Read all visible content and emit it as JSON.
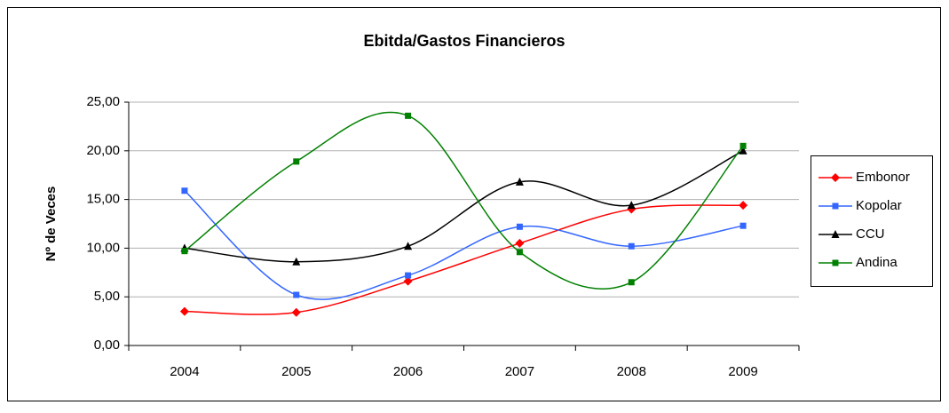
{
  "chart_data": {
    "type": "line",
    "title": "Ebitda/Gastos Financieros",
    "y_label": "Nº de Veces",
    "categories": [
      "2004",
      "2005",
      "2006",
      "2007",
      "2008",
      "2009"
    ],
    "series": [
      {
        "name": "Embonor",
        "color": "#ff0000",
        "marker": "diamond",
        "values": [
          3.5,
          3.4,
          6.6,
          10.5,
          14.0,
          14.4
        ]
      },
      {
        "name": "Kopolar",
        "color": "#3366ff",
        "marker": "square",
        "values": [
          15.9,
          5.2,
          7.2,
          12.2,
          10.2,
          12.3
        ]
      },
      {
        "name": "CCU",
        "color": "#000000",
        "marker": "triangle",
        "values": [
          10.0,
          8.6,
          10.2,
          16.8,
          14.4,
          20.0
        ]
      },
      {
        "name": "Andina",
        "color": "#008000",
        "marker": "square",
        "values": [
          9.7,
          18.9,
          23.6,
          9.6,
          6.5,
          20.5
        ]
      }
    ],
    "ylim": [
      0,
      25
    ],
    "yticks": [
      {
        "value": 0,
        "label": "0,00"
      },
      {
        "value": 5,
        "label": "5,00"
      },
      {
        "value": 10,
        "label": "10,00"
      },
      {
        "value": 15,
        "label": "15,00"
      },
      {
        "value": 20,
        "label": "20,00"
      },
      {
        "value": 25,
        "label": "25,00"
      }
    ],
    "grid": true,
    "smooth": true,
    "legend": "right"
  }
}
